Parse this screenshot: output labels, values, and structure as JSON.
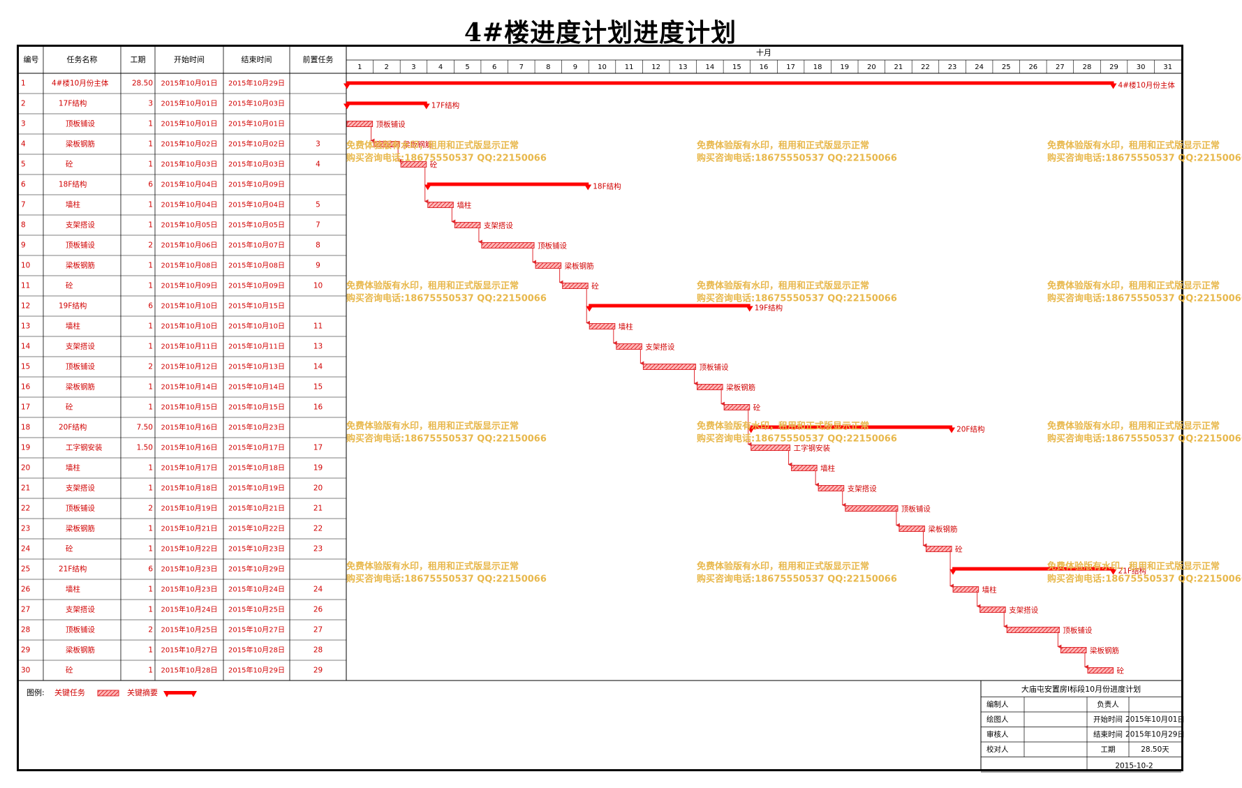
{
  "title": "4#楼进度计划进度计划",
  "colors": {
    "task": "#e0282d",
    "summary": "#ff0000",
    "grid": "#000000",
    "text_red": "#d00000",
    "watermark": "#e8b84c"
  },
  "chart_data": {
    "type": "gantt",
    "columns": [
      "编号",
      "任务名称",
      "工期",
      "开始时间",
      "结束时间",
      "前置任务"
    ],
    "month_label": "十月",
    "days": [
      1,
      2,
      3,
      4,
      5,
      6,
      7,
      8,
      9,
      10,
      11,
      12,
      13,
      14,
      15,
      16,
      17,
      18,
      19,
      20,
      21,
      22,
      23,
      24,
      25,
      26,
      27,
      28,
      29,
      30,
      31
    ],
    "tasks": [
      {
        "id": "1",
        "name": "4#楼10月份主体",
        "duration": "28.50",
        "start": "2015年10月01日",
        "end": "2015年10月29日",
        "pred": "",
        "summary": true,
        "s": 0,
        "e": 28.5,
        "indent": 0
      },
      {
        "id": "2",
        "name": "17F结构",
        "duration": "3",
        "start": "2015年10月01日",
        "end": "2015年10月03日",
        "pred": "",
        "summary": true,
        "s": 0,
        "e": 3,
        "indent": 1
      },
      {
        "id": "3",
        "name": "顶板铺设",
        "duration": "1",
        "start": "2015年10月01日",
        "end": "2015年10月01日",
        "pred": "",
        "summary": false,
        "s": 0,
        "e": 1,
        "indent": 2
      },
      {
        "id": "4",
        "name": "梁板钢筋",
        "duration": "1",
        "start": "2015年10月02日",
        "end": "2015年10月02日",
        "pred": "3",
        "summary": false,
        "s": 1,
        "e": 2,
        "indent": 2
      },
      {
        "id": "5",
        "name": "砼",
        "duration": "1",
        "start": "2015年10月03日",
        "end": "2015年10月03日",
        "pred": "4",
        "summary": false,
        "s": 2,
        "e": 3,
        "indent": 2
      },
      {
        "id": "6",
        "name": "18F结构",
        "duration": "6",
        "start": "2015年10月04日",
        "end": "2015年10月09日",
        "pred": "",
        "summary": true,
        "s": 3,
        "e": 9,
        "indent": 1
      },
      {
        "id": "7",
        "name": "墙柱",
        "duration": "1",
        "start": "2015年10月04日",
        "end": "2015年10月04日",
        "pred": "5",
        "summary": false,
        "s": 3,
        "e": 4,
        "indent": 2
      },
      {
        "id": "8",
        "name": "支架搭设",
        "duration": "1",
        "start": "2015年10月05日",
        "end": "2015年10月05日",
        "pred": "7",
        "summary": false,
        "s": 4,
        "e": 5,
        "indent": 2
      },
      {
        "id": "9",
        "name": "顶板铺设",
        "duration": "2",
        "start": "2015年10月06日",
        "end": "2015年10月07日",
        "pred": "8",
        "summary": false,
        "s": 5,
        "e": 7,
        "indent": 2
      },
      {
        "id": "10",
        "name": "梁板钢筋",
        "duration": "1",
        "start": "2015年10月08日",
        "end": "2015年10月08日",
        "pred": "9",
        "summary": false,
        "s": 7,
        "e": 8,
        "indent": 2
      },
      {
        "id": "11",
        "name": "砼",
        "duration": "1",
        "start": "2015年10月09日",
        "end": "2015年10月09日",
        "pred": "10",
        "summary": false,
        "s": 8,
        "e": 9,
        "indent": 2
      },
      {
        "id": "12",
        "name": "19F结构",
        "duration": "6",
        "start": "2015年10月10日",
        "end": "2015年10月15日",
        "pred": "",
        "summary": true,
        "s": 9,
        "e": 15,
        "indent": 1
      },
      {
        "id": "13",
        "name": "墙柱",
        "duration": "1",
        "start": "2015年10月10日",
        "end": "2015年10月10日",
        "pred": "11",
        "summary": false,
        "s": 9,
        "e": 10,
        "indent": 2
      },
      {
        "id": "14",
        "name": "支架搭设",
        "duration": "1",
        "start": "2015年10月11日",
        "end": "2015年10月11日",
        "pred": "13",
        "summary": false,
        "s": 10,
        "e": 11,
        "indent": 2
      },
      {
        "id": "15",
        "name": "顶板铺设",
        "duration": "2",
        "start": "2015年10月12日",
        "end": "2015年10月13日",
        "pred": "14",
        "summary": false,
        "s": 11,
        "e": 13,
        "indent": 2
      },
      {
        "id": "16",
        "name": "梁板钢筋",
        "duration": "1",
        "start": "2015年10月14日",
        "end": "2015年10月14日",
        "pred": "15",
        "summary": false,
        "s": 13,
        "e": 14,
        "indent": 2
      },
      {
        "id": "17",
        "name": "砼",
        "duration": "1",
        "start": "2015年10月15日",
        "end": "2015年10月15日",
        "pred": "16",
        "summary": false,
        "s": 14,
        "e": 15,
        "indent": 2
      },
      {
        "id": "18",
        "name": "20F结构",
        "duration": "7.50",
        "start": "2015年10月16日",
        "end": "2015年10月23日",
        "pred": "",
        "summary": true,
        "s": 15,
        "e": 22.5,
        "indent": 1
      },
      {
        "id": "19",
        "name": "工字钢安装",
        "duration": "1.50",
        "start": "2015年10月16日",
        "end": "2015年10月17日",
        "pred": "17",
        "summary": false,
        "s": 15,
        "e": 16.5,
        "indent": 2
      },
      {
        "id": "20",
        "name": "墙柱",
        "duration": "1",
        "start": "2015年10月17日",
        "end": "2015年10月18日",
        "pred": "19",
        "summary": false,
        "s": 16.5,
        "e": 17.5,
        "indent": 2
      },
      {
        "id": "21",
        "name": "支架搭设",
        "duration": "1",
        "start": "2015年10月18日",
        "end": "2015年10月19日",
        "pred": "20",
        "summary": false,
        "s": 17.5,
        "e": 18.5,
        "indent": 2
      },
      {
        "id": "22",
        "name": "顶板铺设",
        "duration": "2",
        "start": "2015年10月19日",
        "end": "2015年10月21日",
        "pred": "21",
        "summary": false,
        "s": 18.5,
        "e": 20.5,
        "indent": 2
      },
      {
        "id": "23",
        "name": "梁板钢筋",
        "duration": "1",
        "start": "2015年10月21日",
        "end": "2015年10月22日",
        "pred": "22",
        "summary": false,
        "s": 20.5,
        "e": 21.5,
        "indent": 2
      },
      {
        "id": "24",
        "name": "砼",
        "duration": "1",
        "start": "2015年10月22日",
        "end": "2015年10月23日",
        "pred": "23",
        "summary": false,
        "s": 21.5,
        "e": 22.5,
        "indent": 2
      },
      {
        "id": "25",
        "name": "21F结构",
        "duration": "6",
        "start": "2015年10月23日",
        "end": "2015年10月29日",
        "pred": "",
        "summary": true,
        "s": 22.5,
        "e": 28.5,
        "indent": 1
      },
      {
        "id": "26",
        "name": "墙柱",
        "duration": "1",
        "start": "2015年10月23日",
        "end": "2015年10月24日",
        "pred": "24",
        "summary": false,
        "s": 22.5,
        "e": 23.5,
        "indent": 2
      },
      {
        "id": "27",
        "name": "支架搭设",
        "duration": "1",
        "start": "2015年10月24日",
        "end": "2015年10月25日",
        "pred": "26",
        "summary": false,
        "s": 23.5,
        "e": 24.5,
        "indent": 2
      },
      {
        "id": "28",
        "name": "顶板铺设",
        "duration": "2",
        "start": "2015年10月25日",
        "end": "2015年10月27日",
        "pred": "27",
        "summary": false,
        "s": 24.5,
        "e": 26.5,
        "indent": 2
      },
      {
        "id": "29",
        "name": "梁板钢筋",
        "duration": "1",
        "start": "2015年10月27日",
        "end": "2015年10月28日",
        "pred": "28",
        "summary": false,
        "s": 26.5,
        "e": 27.5,
        "indent": 2
      },
      {
        "id": "30",
        "name": "砼",
        "duration": "1",
        "start": "2015年10月28日",
        "end": "2015年10月29日",
        "pred": "29",
        "summary": false,
        "s": 27.5,
        "e": 28.5,
        "indent": 2
      }
    ]
  },
  "legend": {
    "label": "图例:",
    "task": "关键任务",
    "summary": "关键摘要"
  },
  "watermark": {
    "line1": "免费体验版有水印，租用和正式版显示正常",
    "line2": "购买咨询电话:18675550537 QQ:22150066"
  },
  "title_block": {
    "project": "大庙屯安置房Ⅰ标段10月份进度计划",
    "rows": [
      {
        "label": "编制人",
        "value": "",
        "label2": "负责人",
        "value2": ""
      },
      {
        "label": "绘图人",
        "value": "",
        "label2": "开始时间",
        "value2": "2015年10月01日"
      },
      {
        "label": "审核人",
        "value": "",
        "label2": "结束时间",
        "value2": "2015年10月29日"
      },
      {
        "label": "校对人",
        "value": "",
        "label2": "工期",
        "value2": "28.50天"
      }
    ],
    "date": "2015-10-2"
  }
}
